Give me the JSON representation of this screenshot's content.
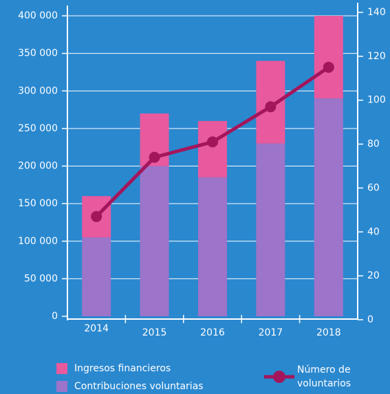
{
  "chart_data": {
    "type": "bar",
    "categories": [
      "2014",
      "2015",
      "2016",
      "2017",
      "2018"
    ],
    "series": [
      {
        "name": "Contribuciones voluntarias",
        "color": "#9c74c9",
        "values": [
          105000,
          200000,
          185000,
          230000,
          290000
        ]
      },
      {
        "name": "Ingresos financieros",
        "color": "#e8599e",
        "values": [
          55000,
          70000,
          75000,
          110000,
          110000
        ]
      },
      {
        "name": "Número de voluntarios",
        "color": "#a3165c",
        "type": "line",
        "axis": "y2",
        "values": [
          47,
          74,
          81,
          97,
          115
        ]
      }
    ],
    "stacked": true,
    "ylim": [
      0,
      400000
    ],
    "yticks": [
      {
        "value": 0,
        "label": "0"
      },
      {
        "value": 50000,
        "label": "50 000"
      },
      {
        "value": 100000,
        "label": "100 000"
      },
      {
        "value": 150000,
        "label": "150 000"
      },
      {
        "value": 200000,
        "label": "200 000"
      },
      {
        "value": 250000,
        "label": "250 000"
      },
      {
        "value": 300000,
        "label": "300 000"
      },
      {
        "value": 350000,
        "label": "350 000"
      },
      {
        "value": 400000,
        "label": "400 000"
      }
    ],
    "y2lim": [
      0,
      140
    ],
    "y2ticks": [
      0,
      20,
      40,
      60,
      80,
      100,
      120,
      140
    ],
    "grid": true
  }
}
